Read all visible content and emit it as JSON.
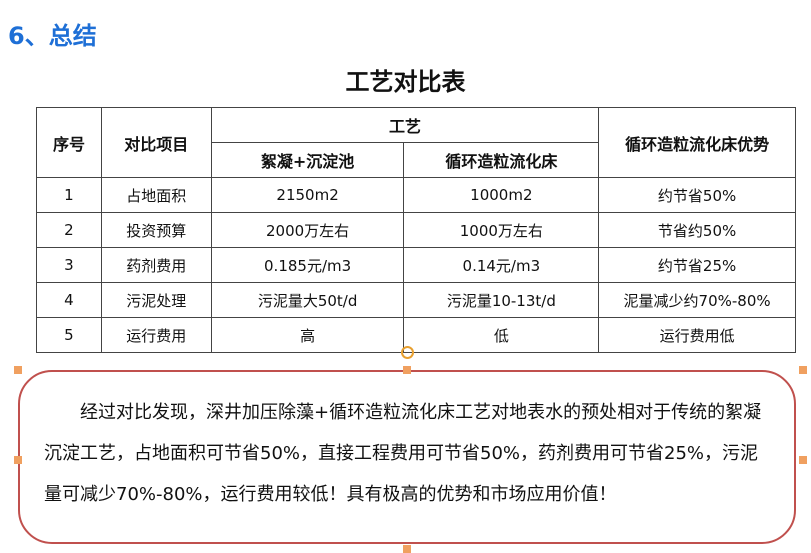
{
  "heading": "6、总结",
  "table_title": "工艺对比表",
  "table": {
    "headers": {
      "no": "序号",
      "item": "对比项目",
      "process": "工艺",
      "sub1": "絮凝+沉淀池",
      "sub2": "循环造粒流化床",
      "advantage": "循环造粒流化床优势"
    },
    "rows": [
      [
        "1",
        "占地面积",
        "2150m2",
        "1000m2",
        "约节省50%"
      ],
      [
        "2",
        "投资预算",
        "2000万左右",
        "1000万左右",
        "节省约50%"
      ],
      [
        "3",
        "药剂费用",
        "0.185元/m3",
        "0.14元/m3",
        "约节省25%"
      ],
      [
        "4",
        "污泥处理",
        "污泥量大50t/d",
        "污泥量10-13t/d",
        "泥量减少约70%-80%"
      ],
      [
        "5",
        "运行费用",
        "高",
        "低",
        "运行费用低"
      ]
    ]
  },
  "summary": "经过对比发现，深井加压除藻+循环造粒流化床工艺对地表水的预处相对于传统的絮凝沉淀工艺，占地面积可节省50%，直接工程费用可节省50%，药剂费用可节省25%，污泥量可减少70%-80%，运行费用较低！具有极高的优势和市场应用价值！"
}
